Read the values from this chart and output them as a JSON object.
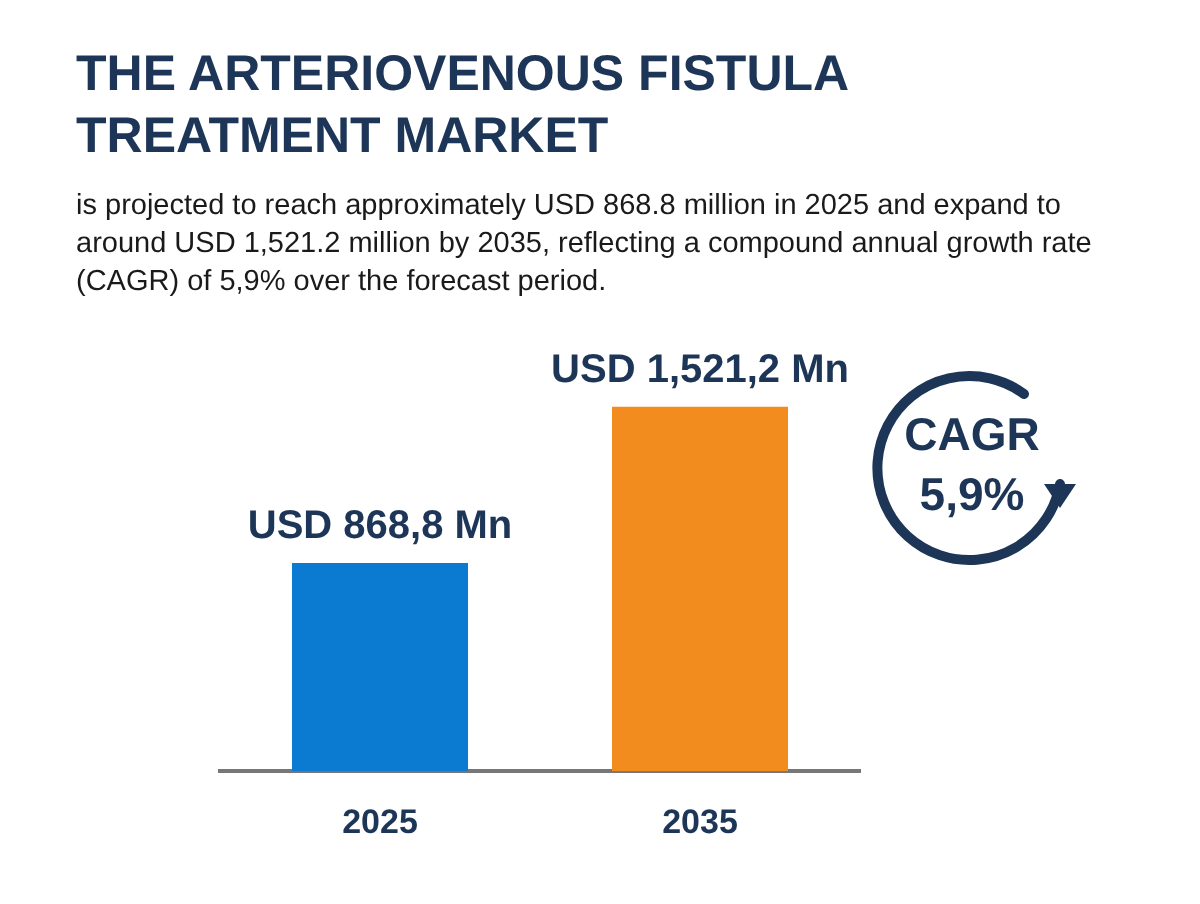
{
  "chart_data": {
    "type": "bar",
    "title": "THE ARTERIOVENOUS FISTULA TREATMENT MARKET",
    "subtitle": "is projected to reach approximately USD 868.8 million in 2025 and expand to around USD 1,521.2 million by 2035, reflecting a compound annual growth rate (CAGR) of 5,9% over the forecast period.",
    "categories": [
      "2025",
      "2035"
    ],
    "values": [
      868.8,
      1521.2
    ],
    "colors": [
      "#0a7bd1",
      "#f28c1e"
    ],
    "value_labels": [
      "USD 868,8 Mn",
      "USD 1,521,2 Mn"
    ],
    "annotations": [
      "CAGR 5,9%"
    ]
  }
}
